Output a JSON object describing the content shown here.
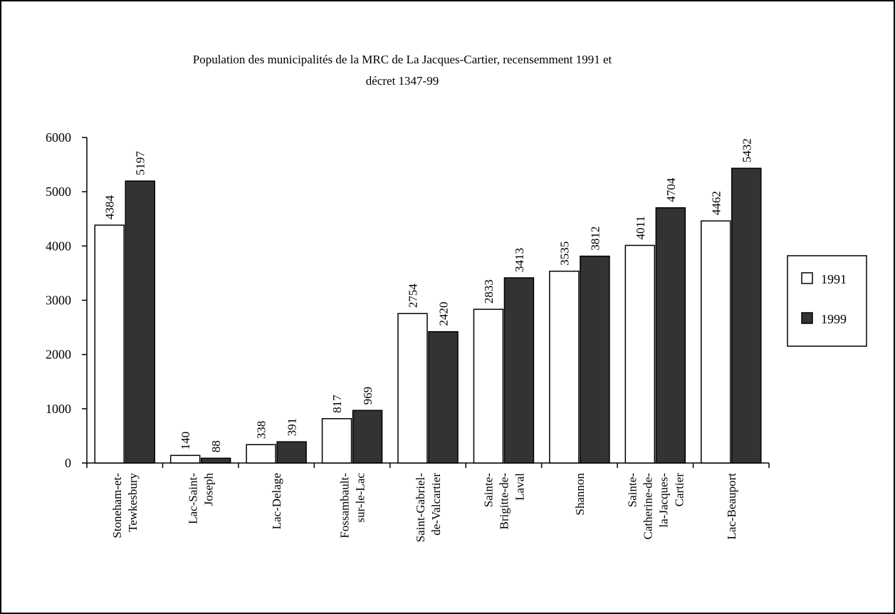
{
  "chart_data": {
    "type": "bar",
    "title": "Population des municipalités de la MRC de La Jacques-Cartier, recensemment 1991 et",
    "subtitle": "décret 1347-99",
    "categories": [
      [
        "Stoneham-et-",
        "Tewkesbury"
      ],
      [
        "Lac-Saint-",
        "Joseph"
      ],
      [
        "Lac-Delage"
      ],
      [
        "Fossambault-",
        "sur-le-Lac"
      ],
      [
        "Saint-Gabriel-",
        "de-Valcartier"
      ],
      [
        "Sainte-",
        "Brigitte-de-",
        "Laval"
      ],
      [
        "Shannon"
      ],
      [
        "Sainte-",
        "Catherine-de-",
        "la-Jacques-",
        "Cartier"
      ],
      [
        "Lac-Beauport"
      ]
    ],
    "series": [
      {
        "name": "1991",
        "values": [
          4384,
          140,
          338,
          817,
          2754,
          2833,
          3535,
          4011,
          4462
        ]
      },
      {
        "name": "1999",
        "values": [
          5197,
          88,
          391,
          969,
          2420,
          3413,
          3812,
          4704,
          5432
        ]
      }
    ],
    "yticks": [
      0,
      1000,
      2000,
      3000,
      4000,
      5000,
      6000
    ],
    "ylim": [
      0,
      6000
    ],
    "legend_position": "right",
    "grid": false,
    "colors": {
      "1991": "#ffffff",
      "1999": "#333333",
      "outline": "#000000"
    }
  }
}
